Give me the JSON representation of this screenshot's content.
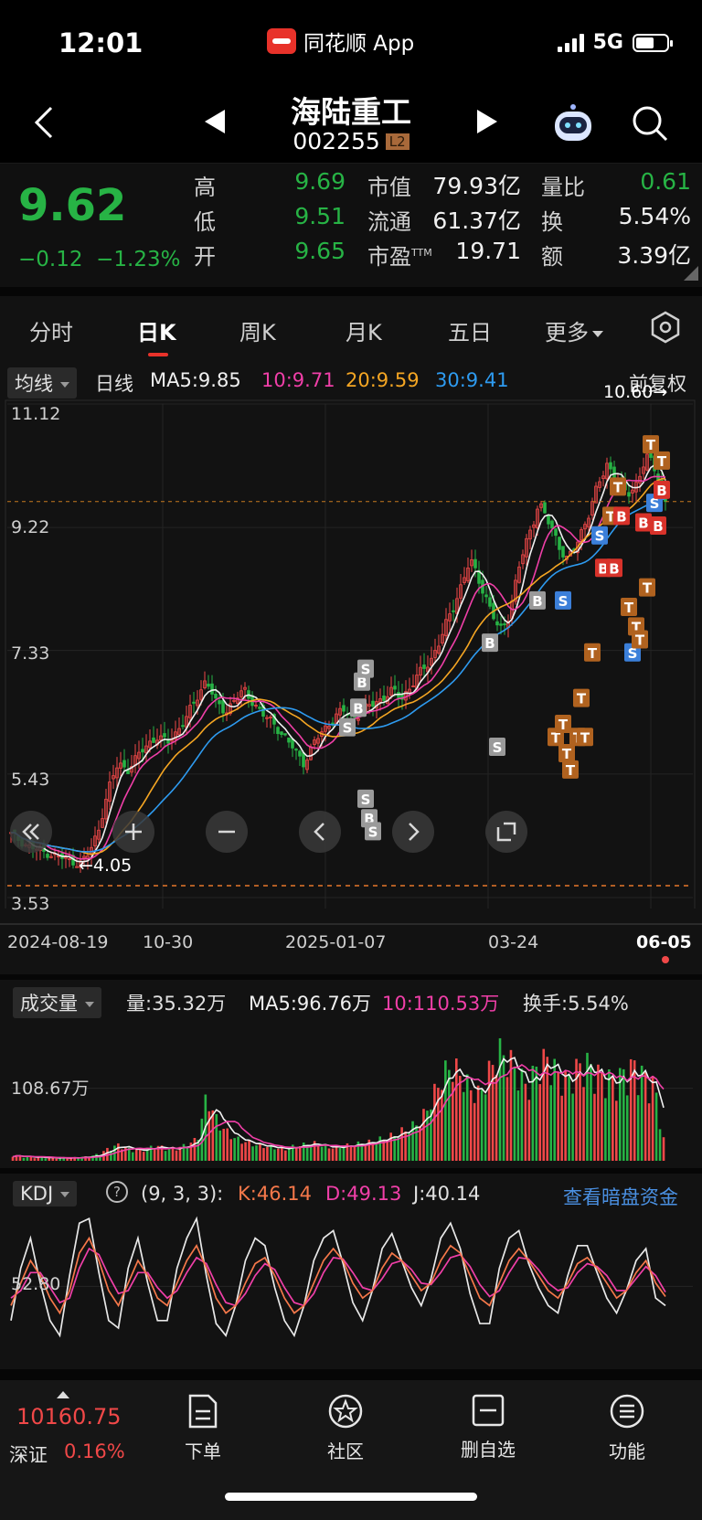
{
  "status_bar": {
    "time": "12:01",
    "app_name": "同花顺 App",
    "network": "5G"
  },
  "header": {
    "stock_name": "海陆重工",
    "stock_code": "002255",
    "level_badge": "L2"
  },
  "quote": {
    "price": "9.62",
    "change": "−0.12",
    "change_pct": "−1.23%",
    "high_label": "高",
    "high": "9.69",
    "low_label": "低",
    "low": "9.51",
    "open_label": "开",
    "open": "9.65",
    "mcap_label": "市值",
    "mcap": "79.93亿",
    "float_label": "流通",
    "float": "61.37亿",
    "pe_label": "市盈",
    "pe_sup": "TTM",
    "pe": "19.71",
    "vr_label": "量比",
    "vr": "0.61",
    "turnover_label": "换",
    "turnover": "5.54%",
    "amount_label": "额",
    "amount": "3.39亿"
  },
  "tabs": [
    "分时",
    "日K",
    "周K",
    "月K",
    "五日",
    "更多"
  ],
  "active_tab": "日K",
  "ma_bar": {
    "selector": "均线",
    "period": "日线",
    "ma5": "MA5:9.85",
    "ma10": "10:9.71",
    "ma20": "20:9.59",
    "ma30": "30:9.41",
    "adjust": "前复权"
  },
  "kline_axis": {
    "y1": "11.12",
    "y2": "9.22",
    "y3": "7.33",
    "y4": "5.43",
    "y5": "3.53"
  },
  "kline_annotations": {
    "max_label": "10.60→",
    "min_label": "←4.05"
  },
  "x_axis": [
    "2024-08-19",
    "10-30",
    "2025-01-07",
    "03-24",
    "06-05"
  ],
  "volume_bar": {
    "selector": "成交量",
    "vol": "量:35.32万",
    "ma5": "MA5:96.76万",
    "ma10": "10:110.53万",
    "turnover": "换手:5.54%",
    "axis": "108.67万"
  },
  "kdj_bar": {
    "selector": "KDJ",
    "help": "?",
    "params": "(9, 3, 3):",
    "k": "K:46.14",
    "d": "D:49.13",
    "j": "J:40.14",
    "link": "查看暗盘资金",
    "axis": "52.80"
  },
  "bottom_nav": {
    "index_value": "10160.75",
    "index_name": "深证",
    "index_pct": "0.16%",
    "items": [
      "下单",
      "社区",
      "删自选",
      "功能"
    ]
  },
  "colors": {
    "up": "#f04848",
    "down": "#27b345",
    "ma5": "#f0f0f0",
    "ma10": "#f03fa8",
    "ma20": "#f5a623",
    "ma30": "#2e9bf0"
  },
  "chart_data": {
    "type": "candlestick",
    "title": "",
    "x": [
      "2024-08-19",
      "10-30",
      "2025-01-07",
      "03-24",
      "06-05"
    ],
    "ylim": [
      3.53,
      11.12
    ],
    "y_ticks": [
      11.12,
      9.22,
      7.33,
      5.43,
      3.53
    ],
    "max_marker": 10.6,
    "min_marker": 4.05,
    "last_close": 9.62,
    "ma_latest": {
      "MA5": 9.85,
      "MA10": 9.71,
      "MA20": 9.59,
      "MA30": 9.41
    },
    "close_series": [
      4.5,
      4.4,
      4.3,
      4.25,
      4.2,
      4.15,
      4.1,
      4.05,
      4.2,
      4.6,
      5.2,
      5.6,
      5.5,
      5.7,
      5.9,
      6.0,
      5.9,
      6.1,
      6.3,
      6.6,
      6.9,
      6.5,
      6.4,
      6.6,
      6.7,
      6.5,
      6.3,
      6.2,
      6.0,
      5.8,
      5.6,
      5.9,
      6.1,
      6.3,
      6.4,
      6.3,
      6.4,
      6.5,
      6.6,
      6.7,
      6.6,
      6.8,
      7.0,
      7.2,
      7.5,
      7.9,
      8.3,
      8.7,
      8.4,
      8.0,
      7.6,
      7.9,
      8.6,
      9.1,
      9.6,
      9.3,
      9.0,
      8.7,
      9.0,
      9.4,
      9.8,
      10.2,
      10.0,
      9.7,
      9.9,
      10.3,
      10.1,
      9.62
    ]
  },
  "volume_data": {
    "type": "bar",
    "ma_latest": {
      "MA5": 96.76,
      "MA10": 110.53
    },
    "axis_tick": 108.67,
    "values": [
      8,
      6,
      5,
      5,
      4,
      4,
      4,
      5,
      6,
      10,
      18,
      22,
      16,
      14,
      18,
      20,
      16,
      18,
      22,
      30,
      90,
      55,
      40,
      30,
      26,
      22,
      20,
      18,
      16,
      20,
      22,
      24,
      20,
      18,
      20,
      22,
      24,
      26,
      30,
      34,
      40,
      46,
      55,
      80,
      110,
      130,
      120,
      100,
      90,
      120,
      150,
      140,
      120,
      100,
      130,
      140,
      120,
      110,
      125,
      135,
      120,
      115,
      110,
      120,
      130,
      115,
      105,
      35
    ]
  },
  "kdj_data": {
    "type": "line",
    "latest": {
      "K": 46.14,
      "D": 49.13,
      "J": 40.14
    },
    "axis_tick": 52.8,
    "k": [
      40,
      55,
      70,
      60,
      45,
      35,
      50,
      75,
      85,
      70,
      50,
      40,
      55,
      70,
      60,
      45,
      40,
      55,
      70,
      80,
      65,
      45,
      35,
      40,
      55,
      68,
      72,
      60,
      45,
      35,
      40,
      55,
      70,
      78,
      70,
      55,
      45,
      50,
      65,
      75,
      70,
      60,
      50,
      55,
      70,
      80,
      75,
      60,
      45,
      40,
      55,
      70,
      78,
      70,
      60,
      50,
      45,
      55,
      68,
      72,
      65,
      55,
      45,
      50,
      62,
      70,
      55,
      46
    ],
    "d": [
      45,
      50,
      62,
      62,
      52,
      42,
      45,
      65,
      78,
      74,
      60,
      48,
      50,
      62,
      62,
      52,
      45,
      50,
      62,
      72,
      68,
      54,
      42,
      40,
      48,
      60,
      68,
      64,
      52,
      42,
      40,
      48,
      62,
      72,
      71,
      62,
      52,
      50,
      58,
      68,
      70,
      64,
      55,
      54,
      62,
      72,
      74,
      66,
      54,
      46,
      50,
      62,
      72,
      71,
      64,
      55,
      50,
      52,
      62,
      68,
      66,
      60,
      50,
      50,
      58,
      66,
      60,
      49
    ],
    "j": [
      30,
      65,
      85,
      55,
      30,
      20,
      60,
      95,
      98,
      62,
      30,
      25,
      65,
      85,
      55,
      30,
      30,
      65,
      85,
      98,
      60,
      28,
      20,
      40,
      70,
      85,
      80,
      52,
      30,
      20,
      40,
      70,
      85,
      90,
      68,
      42,
      30,
      50,
      78,
      88,
      70,
      52,
      40,
      58,
      85,
      95,
      78,
      48,
      28,
      28,
      65,
      85,
      90,
      68,
      52,
      40,
      35,
      60,
      80,
      80,
      62,
      45,
      35,
      50,
      70,
      78,
      45,
      40
    ]
  }
}
